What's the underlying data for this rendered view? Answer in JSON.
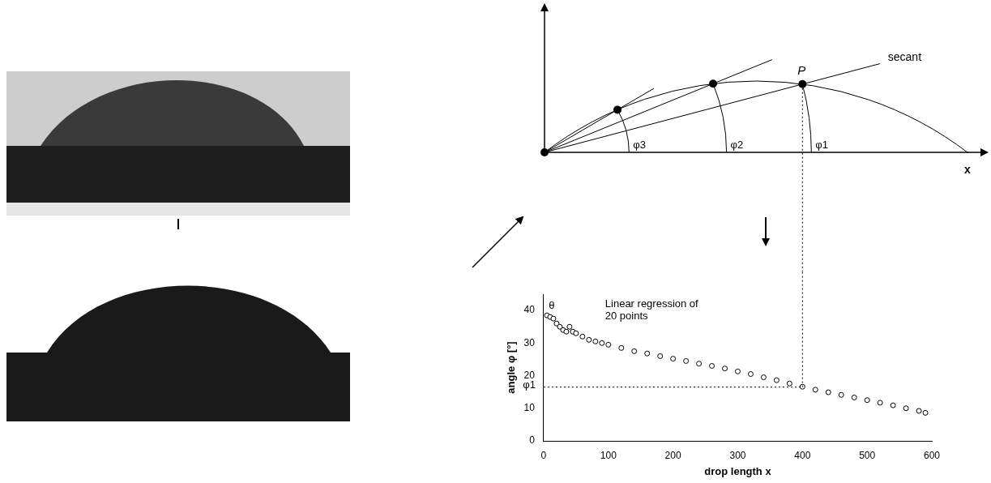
{
  "chart_data": {
    "type": "scatter",
    "x": [
      5,
      10,
      15,
      20,
      25,
      30,
      35,
      40,
      45,
      50,
      60,
      70,
      80,
      90,
      100,
      120,
      140,
      160,
      180,
      200,
      220,
      240,
      260,
      280,
      300,
      320,
      340,
      360,
      380,
      400,
      420,
      440,
      460,
      480,
      500,
      520,
      540,
      560,
      580,
      590
    ],
    "values": [
      38.5,
      38.0,
      37.5,
      36.0,
      35.0,
      34.0,
      33.5,
      35.0,
      33.5,
      33.0,
      32.0,
      31.0,
      30.5,
      30.0,
      29.5,
      28.5,
      27.5,
      26.8,
      26.0,
      25.2,
      24.5,
      23.7,
      23.0,
      22.2,
      21.3,
      20.5,
      19.5,
      18.6,
      17.6,
      16.6,
      15.7,
      14.9,
      14.1,
      13.3,
      12.5,
      11.7,
      10.9,
      10.0,
      9.2,
      8.6
    ],
    "color": "#000000",
    "marker": "circle",
    "x_label": "drop length x",
    "y_label": "angle φ [°]",
    "xlim": [
      0,
      600
    ],
    "xticks": [
      0,
      100,
      200,
      300,
      400,
      500,
      600
    ],
    "ylim": [
      0,
      45
    ],
    "yticks": [
      0,
      10,
      20,
      30,
      40
    ],
    "grid": false,
    "annotations": [
      {
        "text": "θ",
        "x": 8,
        "y": 41.5
      },
      {
        "text": "Linear regression of 20 points",
        "x": 95,
        "y": 42
      }
    ],
    "reference": {
      "x": 400,
      "y": 16.5,
      "label": "φ1"
    }
  },
  "diagram": {
    "point_label": "P",
    "secant_label": "secant",
    "axis_label": "x",
    "angle_labels": [
      "φ1",
      "φ2",
      "φ3"
    ]
  }
}
